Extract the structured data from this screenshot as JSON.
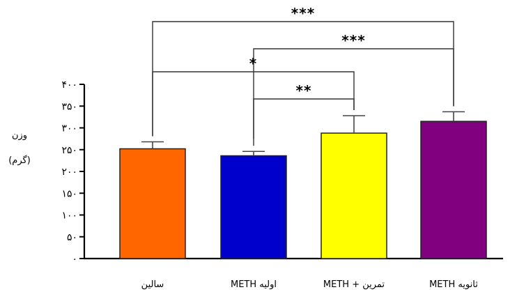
{
  "chart_data": {
    "type": "bar",
    "ylabel_lines": [
      "وزن",
      "(گرم)"
    ],
    "ylim": [
      0,
      400
    ],
    "yticks": [
      0,
      50,
      100,
      150,
      200,
      250,
      300,
      350,
      400
    ],
    "ytick_labels": [
      "۰",
      "۵۰",
      "۱۰۰",
      "۱۵۰",
      "۲۰۰",
      "۲۵۰",
      "۳۰۰",
      "۳۵۰",
      "۴۰۰"
    ],
    "categories": [
      "سالین",
      "METH اولیه",
      "METH + تمرین",
      "METH ثانویه"
    ],
    "values": [
      252,
      236,
      288,
      315
    ],
    "errors": [
      16,
      10,
      40,
      22
    ],
    "colors": [
      "#ff6600",
      "#0000cc",
      "#ffff00",
      "#800080"
    ],
    "significance": [
      {
        "from": 0,
        "to": 3,
        "label": "***"
      },
      {
        "from": 1,
        "to": 3,
        "label": "***"
      },
      {
        "from": 0,
        "to": 2,
        "label": "*"
      },
      {
        "from": 1,
        "to": 2,
        "label": "**"
      }
    ]
  }
}
